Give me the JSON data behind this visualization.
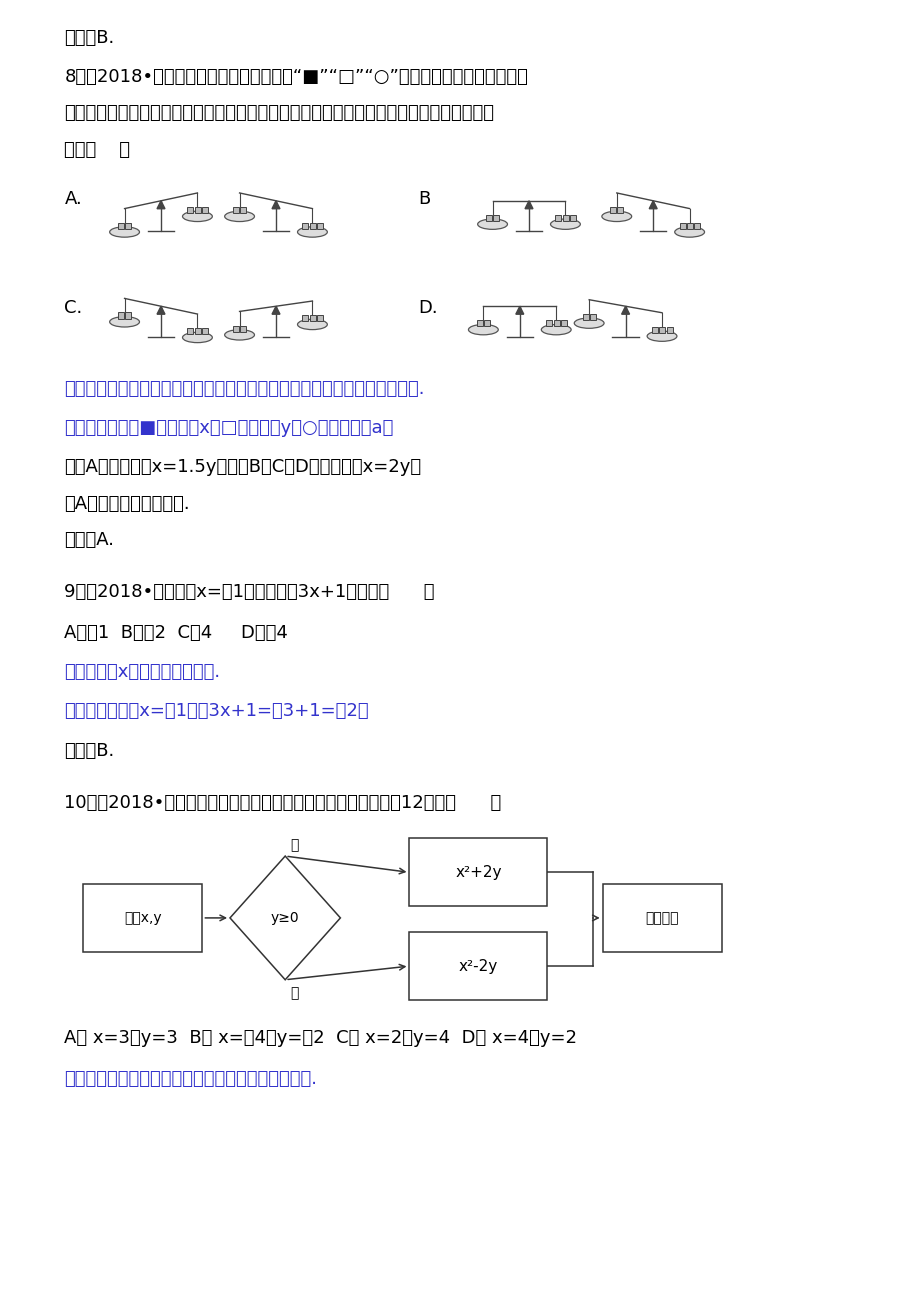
{
  "bg_color": "#ffffff",
  "highlight_color": "#3333cc",
  "line1": "故选：B.",
  "q8_line1": "8．（2018•河北）有三种不同质量的物体“■”“□”“○”，其中，同一种物体的质量",
  "q8_line2": "都相等，现左右手中同样的盘子上都放着不同个数的物体，只有一组左右质量不相等，则该",
  "q8_line3": "组是（    ）",
  "q8_labelA": "A.",
  "q8_labelB": "B",
  "q8_labelC": "C.",
  "q8_labelD": "D.",
  "q8_analysis": "【分析】直接利用已知盘子上的物体得出物体之间的重量关系进而得出答案.",
  "q8_answer1": "【解答】解：设■的质量为x，□的质量为y，○的质量为：a，",
  "q8_answer2": "假讽A正确，则，x=1.5y，此时B、C、D选项中都是x=2y，",
  "q8_answer3": "故A选项错误，符合题意.",
  "q8_answer4": "故选：A.",
  "q9_line1": "9．（2018•贵阳）当x=－1时，代数式3x+1的值是（      ）",
  "q9_options": "A．－1  B．－2  C．4     D．－4",
  "q9_analysis": "【分析】把x的值代入解答即可.",
  "q9_answer": "【解答】解：把x=－1代入3x+1=－3+1=－2，",
  "q9_end": "故选：B.",
  "q10_line1": "10．（2018•重庆）按如图所示的运算程序，能使输出的结果为12的是（      ）",
  "q10_options": "A． x=3，y=3  B． x=－4，y=－2  C． x=2，y=4  D． x=4，y=2",
  "q10_analysis": "【分析】根据运算程序，结合输出结果确定的值即可.",
  "fc_input": "输入x,y",
  "fc_diamond": "y≥0",
  "fc_top_box": "x²+2y",
  "fc_bot_box": "x²-2y",
  "fc_output": "输出结果",
  "fc_yes": "是",
  "fc_no": "否"
}
